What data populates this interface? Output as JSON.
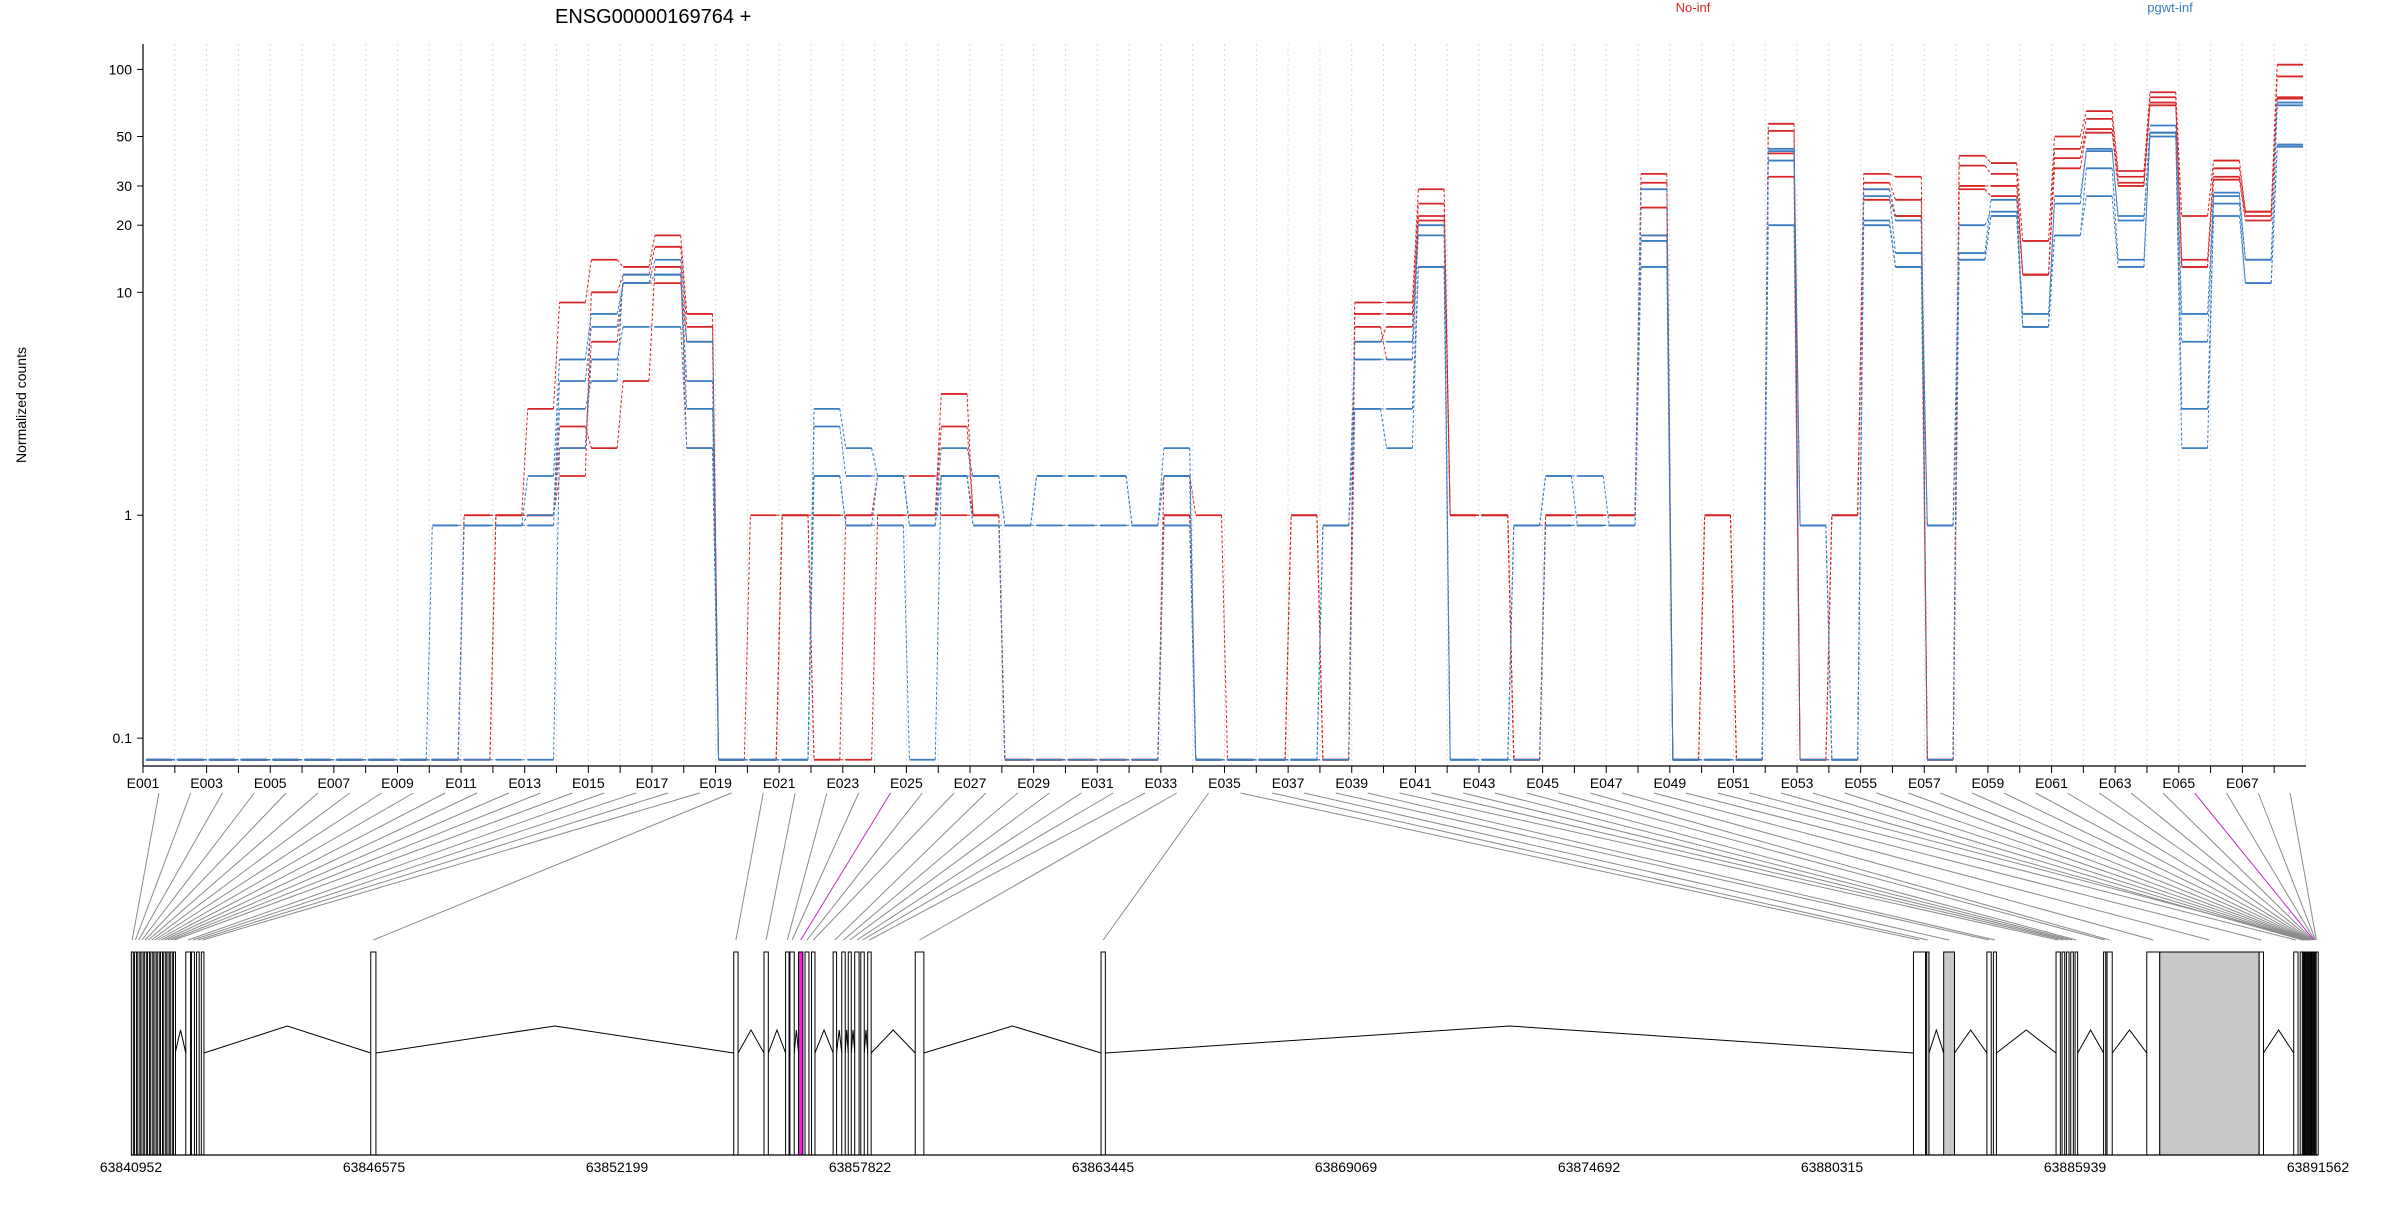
{
  "chart_data": {
    "type": "line",
    "title": "ENSG00000169764 +",
    "ylabel": "Normalized counts",
    "yscale": "log",
    "ylim": [
      0.075,
      130
    ],
    "yticks": [
      "0.1",
      "1",
      "10",
      "20",
      "30",
      "50",
      "100"
    ],
    "ytick_values": [
      0.1,
      1,
      10,
      20,
      30,
      50,
      100
    ],
    "legend": [
      {
        "name": "No-inf",
        "color": "#d62728"
      },
      {
        "name": "pgwt-inf",
        "color": "#3a7dc0"
      }
    ],
    "legend_placement": "top-right",
    "grid": true,
    "exons": [
      "E001",
      "E002",
      "E003",
      "E004",
      "E005",
      "E006",
      "E007",
      "E008",
      "E009",
      "E010",
      "E011",
      "E012",
      "E013",
      "E014",
      "E015",
      "E016",
      "E017",
      "E018",
      "E019",
      "E020",
      "E021",
      "E022",
      "E023",
      "E024",
      "E025",
      "E026",
      "E027",
      "E028",
      "E029",
      "E030",
      "E031",
      "E032",
      "E033",
      "E034",
      "E035",
      "E036",
      "E037",
      "E038",
      "E039",
      "E040",
      "E041",
      "E042",
      "E043",
      "E044",
      "E045",
      "E046",
      "E047",
      "E048",
      "E049",
      "E050",
      "E051",
      "E052",
      "E053",
      "E054",
      "E055",
      "E056",
      "E057",
      "E058",
      "E059",
      "E060",
      "E061",
      "E062",
      "E063",
      "E064",
      "E065",
      "E066",
      "E067",
      "E068"
    ],
    "exon_tick_labels": [
      "E001",
      "E003",
      "E005",
      "E007",
      "E009",
      "E011",
      "E013",
      "E015",
      "E017",
      "E019",
      "E021",
      "E023",
      "E025",
      "E027",
      "E029",
      "E031",
      "E033",
      "E035",
      "E037",
      "E039",
      "E041",
      "E043",
      "E045",
      "E047",
      "E049",
      "E051",
      "E053",
      "E055",
      "E057",
      "E059",
      "E061",
      "E063",
      "E065",
      "E067"
    ],
    "series": [
      {
        "group": "No-inf",
        "values": [
          0.08,
          0.08,
          0.08,
          0.08,
          0.08,
          0.08,
          0.08,
          0.08,
          0.08,
          0.08,
          1,
          1,
          3,
          9,
          14,
          13,
          18,
          8,
          0.08,
          1,
          1,
          1,
          1,
          1,
          1,
          3.5,
          1,
          0.08,
          0.08,
          0.08,
          0.08,
          0.08,
          1,
          0.08,
          0.08,
          0.08,
          1,
          0.08,
          9,
          9,
          29,
          1,
          1,
          0.08,
          1,
          1,
          1,
          34,
          0.08,
          1,
          0.08,
          57,
          0.08,
          1,
          34,
          33,
          0.08,
          41,
          38,
          17,
          50,
          65,
          35,
          79,
          22,
          39,
          23,
          105
        ]
      },
      {
        "group": "No-inf",
        "values": [
          0.08,
          0.08,
          0.08,
          0.08,
          0.08,
          0.08,
          0.08,
          0.08,
          0.08,
          0.08,
          1,
          1,
          1,
          1.5,
          10,
          12,
          16,
          7,
          0.08,
          0.08,
          1,
          1,
          1,
          1,
          1,
          2.5,
          1,
          0.08,
          0.08,
          0.08,
          0.08,
          0.08,
          1,
          0.08,
          0.08,
          0.08,
          1,
          0.08,
          8,
          8,
          25,
          1,
          1,
          0.08,
          1,
          1,
          1,
          31,
          0.08,
          1,
          0.08,
          53,
          0.08,
          1,
          31,
          26,
          0.08,
          37,
          34,
          12,
          44,
          60,
          33,
          75,
          14,
          36,
          23,
          93
        ]
      },
      {
        "group": "No-inf",
        "values": [
          0.08,
          0.08,
          0.08,
          0.08,
          0.08,
          0.08,
          0.08,
          0.08,
          0.08,
          0.08,
          0.08,
          1,
          1,
          2.5,
          2,
          4,
          13,
          2,
          0.08,
          0.08,
          1,
          0.08,
          1,
          1.5,
          1.5,
          1.5,
          1,
          0.08,
          0.08,
          0.08,
          0.08,
          0.08,
          1.5,
          1,
          0.08,
          0.08,
          1,
          0.08,
          7,
          5,
          22,
          1,
          1,
          0.08,
          1,
          1,
          1,
          24,
          0.08,
          1,
          0.08,
          33,
          0.08,
          1,
          29,
          22,
          0.08,
          30,
          30,
          12,
          40,
          54,
          31,
          71,
          13,
          33,
          22,
          74
        ]
      },
      {
        "group": "No-inf",
        "values": [
          0.08,
          0.08,
          0.08,
          0.08,
          0.08,
          0.08,
          0.08,
          0.08,
          0.08,
          0.08,
          0.08,
          1,
          1,
          2,
          6,
          11,
          11,
          6,
          0.08,
          0.08,
          1,
          0.08,
          0.08,
          1,
          1,
          1,
          1,
          0.08,
          0.08,
          0.08,
          0.08,
          0.08,
          1,
          0.08,
          0.08,
          0.08,
          0.08,
          0.08,
          6,
          7,
          21,
          1,
          1,
          0.08,
          1,
          1,
          1,
          18,
          0.08,
          0.08,
          0.08,
          42,
          0.08,
          0.08,
          26,
          22,
          0.08,
          29,
          27,
          12,
          36,
          52,
          30,
          69,
          13,
          32,
          21,
          75
        ]
      },
      {
        "group": "pgwt-inf",
        "values": [
          0.08,
          0.08,
          0.08,
          0.08,
          0.08,
          0.08,
          0.08,
          0.08,
          0.08,
          0.9,
          0.9,
          0.9,
          1.5,
          5,
          8,
          11,
          14,
          6,
          0.08,
          0.08,
          0.08,
          3,
          2,
          1.5,
          0.9,
          2,
          1.5,
          0.9,
          1.5,
          1.5,
          1.5,
          0.9,
          2,
          0.08,
          0.08,
          0.08,
          0.08,
          0.9,
          6,
          6,
          20,
          0.08,
          0.08,
          0.9,
          1.5,
          1.5,
          0.9,
          29,
          0.08,
          0.08,
          0.08,
          44,
          0.9,
          0.08,
          29,
          21,
          0.9,
          20,
          23,
          8,
          25,
          44,
          21,
          56,
          8,
          27,
          14,
          71
        ]
      },
      {
        "group": "pgwt-inf",
        "values": [
          0.08,
          0.08,
          0.08,
          0.08,
          0.08,
          0.08,
          0.08,
          0.08,
          0.08,
          0.08,
          0.9,
          0.9,
          1,
          4,
          7,
          11,
          12,
          4,
          0.08,
          0.08,
          0.08,
          2.5,
          1.5,
          1.5,
          0.9,
          1.5,
          1.5,
          0.9,
          1.5,
          1.5,
          1.5,
          0.9,
          1.5,
          0.08,
          0.08,
          0.08,
          0.08,
          0.9,
          5,
          5,
          18,
          0.08,
          0.08,
          0.9,
          1.5,
          0.9,
          0.9,
          18,
          0.08,
          0.08,
          0.08,
          43,
          0.9,
          0.08,
          27,
          15,
          0.9,
          15,
          26,
          7,
          27,
          43,
          22,
          52,
          6,
          28,
          14,
          69
        ]
      },
      {
        "group": "pgwt-inf",
        "values": [
          0.08,
          0.08,
          0.08,
          0.08,
          0.08,
          0.08,
          0.08,
          0.08,
          0.08,
          0.08,
          0.9,
          0.9,
          0.9,
          3,
          4,
          12,
          12,
          3,
          0.08,
          0.08,
          0.08,
          1.5,
          0.9,
          1.5,
          0.9,
          1.5,
          0.9,
          0.9,
          0.9,
          0.9,
          0.9,
          0.9,
          1.5,
          0.08,
          0.08,
          0.08,
          0.08,
          0.9,
          3,
          3,
          13,
          0.08,
          0.08,
          0.9,
          0.9,
          0.9,
          0.9,
          17,
          0.08,
          0.08,
          0.08,
          39,
          0.9,
          0.08,
          21,
          13,
          0.9,
          14,
          22,
          7,
          18,
          36,
          14,
          50,
          3,
          22,
          11,
          46
        ]
      },
      {
        "group": "pgwt-inf",
        "values": [
          0.08,
          0.08,
          0.08,
          0.08,
          0.08,
          0.08,
          0.08,
          0.08,
          0.08,
          0.08,
          0.08,
          0.08,
          0.08,
          2,
          5,
          7,
          7,
          2,
          0.08,
          0.08,
          0.08,
          1.5,
          0.9,
          0.9,
          0.08,
          1.5,
          0.9,
          0.08,
          0.08,
          0.08,
          0.08,
          0.08,
          0.9,
          0.08,
          0.08,
          0.08,
          0.08,
          0.08,
          3,
          2,
          13,
          0.08,
          0.08,
          0.08,
          0.9,
          0.9,
          0.9,
          13,
          0.08,
          0.08,
          0.08,
          20,
          0.08,
          0.08,
          20,
          13,
          0.08,
          14,
          22,
          7,
          18,
          27,
          13,
          52,
          2,
          25,
          11,
          45
        ]
      }
    ],
    "genome_ticks": [
      "63840952",
      "63846575",
      "63852199",
      "63857822",
      "63863445",
      "63869069",
      "63874692",
      "63880315",
      "63885939",
      "63891562"
    ],
    "genome_tick_values": [
      63840952,
      63846575,
      63852199,
      63857822,
      63863445,
      63869069,
      63874692,
      63880315,
      63885939,
      63891562
    ],
    "highlighted_exons": [
      "E024",
      "E065"
    ]
  }
}
